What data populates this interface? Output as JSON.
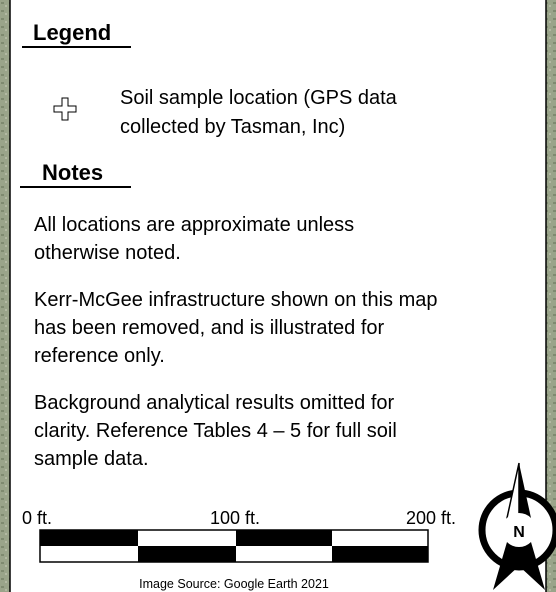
{
  "legend": {
    "title": "Legend",
    "items": [
      {
        "lines": [
          "Soil sample location (GPS data",
          "collected by Tasman, Inc)"
        ]
      }
    ]
  },
  "notes": {
    "title": "Notes",
    "paragraphs": [
      [
        "All locations are approximate unless",
        "otherwise noted."
      ],
      [
        "Kerr-McGee infrastructure shown on this map",
        "has been removed, and is illustrated for",
        "reference only."
      ],
      [
        "Background analytical results omitted for",
        "clarity. Reference Tables 4 – 5 for full soil",
        "sample data."
      ]
    ]
  },
  "scale_bar": {
    "labels": [
      "0 ft.",
      "100 ft.",
      "200 ft."
    ]
  },
  "north_arrow": {
    "label": "N"
  },
  "image_source": "Image Source:  Google Earth 2021"
}
